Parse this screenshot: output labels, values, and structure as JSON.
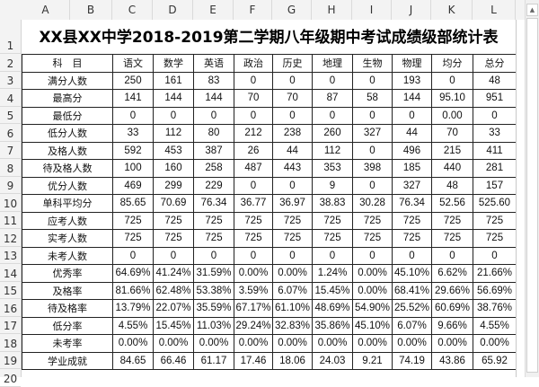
{
  "column_headers": [
    "A",
    "B",
    "C",
    "D",
    "E",
    "F",
    "G",
    "H",
    "I",
    "J",
    "K",
    "L"
  ],
  "row_numbers": [
    "1",
    "2",
    "3",
    "4",
    "5",
    "6",
    "7",
    "8",
    "9",
    "10",
    "11",
    "12",
    "13",
    "14",
    "15",
    "16",
    "17",
    "18",
    "19",
    "20"
  ],
  "sheet": {
    "title": "XX县XX中学2018-2019第二学期八年级期中考试成绩级部统计表",
    "header_label": "科　目",
    "subjects": [
      "语文",
      "数学",
      "英语",
      "政治",
      "历史",
      "地理",
      "生物",
      "物理",
      "均分",
      "总分"
    ],
    "rows": [
      {
        "label": "满分人数",
        "values": [
          "250",
          "161",
          "83",
          "0",
          "0",
          "0",
          "0",
          "193",
          "0",
          "48"
        ]
      },
      {
        "label": "最高分",
        "values": [
          "141",
          "144",
          "144",
          "70",
          "70",
          "87",
          "58",
          "144",
          "95.10",
          "951"
        ]
      },
      {
        "label": "最低分",
        "values": [
          "0",
          "0",
          "0",
          "0",
          "0",
          "0",
          "0",
          "0",
          "0.00",
          "0"
        ]
      },
      {
        "label": "低分人数",
        "values": [
          "33",
          "112",
          "80",
          "212",
          "238",
          "260",
          "327",
          "44",
          "70",
          "33"
        ]
      },
      {
        "label": "及格人数",
        "values": [
          "592",
          "453",
          "387",
          "26",
          "44",
          "112",
          "0",
          "496",
          "215",
          "411"
        ]
      },
      {
        "label": "待及格人数",
        "values": [
          "100",
          "160",
          "258",
          "487",
          "443",
          "353",
          "398",
          "185",
          "440",
          "281"
        ]
      },
      {
        "label": "优分人数",
        "values": [
          "469",
          "299",
          "229",
          "0",
          "0",
          "9",
          "0",
          "327",
          "48",
          "157"
        ]
      },
      {
        "label": "单科平均分",
        "values": [
          "85.65",
          "70.69",
          "76.34",
          "36.77",
          "36.97",
          "38.83",
          "30.28",
          "76.34",
          "52.56",
          "525.60"
        ]
      },
      {
        "label": "应考人数",
        "values": [
          "725",
          "725",
          "725",
          "725",
          "725",
          "725",
          "725",
          "725",
          "725",
          "725"
        ]
      },
      {
        "label": "实考人数",
        "values": [
          "725",
          "725",
          "725",
          "725",
          "725",
          "725",
          "725",
          "725",
          "725",
          "725"
        ]
      },
      {
        "label": "未考人数",
        "values": [
          "0",
          "0",
          "0",
          "0",
          "0",
          "0",
          "0",
          "0",
          "0",
          "0"
        ]
      },
      {
        "label": "优秀率",
        "values": [
          "64.69%",
          "41.24%",
          "31.59%",
          "0.00%",
          "0.00%",
          "1.24%",
          "0.00%",
          "45.10%",
          "6.62%",
          "21.66%"
        ]
      },
      {
        "label": "及格率",
        "values": [
          "81.66%",
          "62.48%",
          "53.38%",
          "3.59%",
          "6.07%",
          "15.45%",
          "0.00%",
          "68.41%",
          "29.66%",
          "56.69%"
        ]
      },
      {
        "label": "待及格率",
        "values": [
          "13.79%",
          "22.07%",
          "35.59%",
          "67.17%",
          "61.10%",
          "48.69%",
          "54.90%",
          "25.52%",
          "60.69%",
          "38.76%"
        ]
      },
      {
        "label": "低分率",
        "values": [
          "4.55%",
          "15.45%",
          "11.03%",
          "29.24%",
          "32.83%",
          "35.86%",
          "45.10%",
          "6.07%",
          "9.66%",
          "4.55%"
        ]
      },
      {
        "label": "未考率",
        "values": [
          "0.00%",
          "0.00%",
          "0.00%",
          "0.00%",
          "0.00%",
          "0.00%",
          "0.00%",
          "0.00%",
          "0.00%",
          "0.00%"
        ]
      },
      {
        "label": "学业成就",
        "values": [
          "84.65",
          "66.46",
          "61.17",
          "17.46",
          "18.06",
          "24.03",
          "9.21",
          "74.19",
          "43.86",
          "65.92"
        ]
      }
    ]
  },
  "scrollbar": {
    "up_arrow_icon": "▲"
  }
}
